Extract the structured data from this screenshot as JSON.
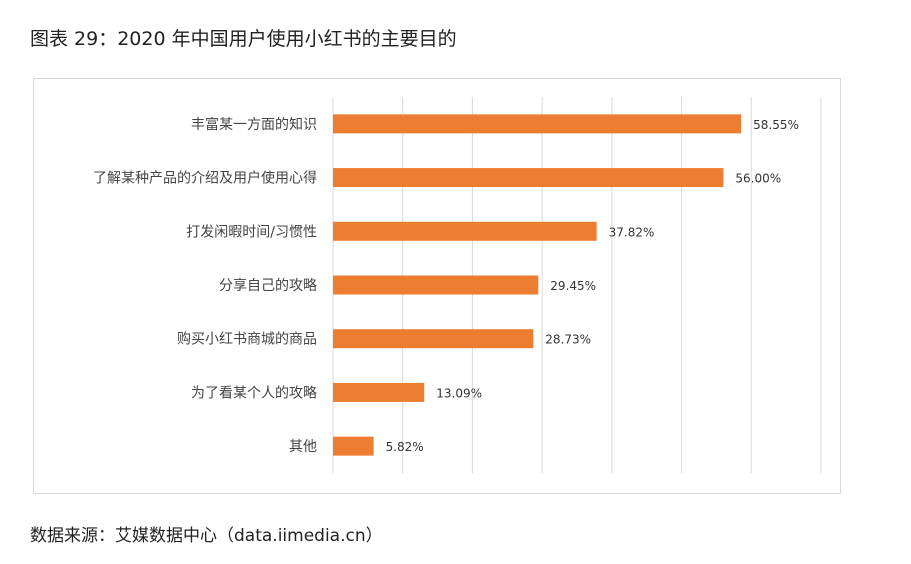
{
  "figure": {
    "title": "图表 29：2020 年中国用户使用小红书的主要目的",
    "source": "数据来源：艾媒数据中心（data.iimedia.cn）"
  },
  "chart_data": {
    "type": "bar",
    "orientation": "horizontal",
    "categories": [
      "丰富某一方面的知识",
      "了解某种产品的介绍及用户使用心得",
      "打发闲暇时间/习惯性",
      "分享自己的攻略",
      "购买小红书商城的商品",
      "为了看某个人的攻略",
      "其他"
    ],
    "values": [
      58.55,
      56.0,
      37.82,
      29.45,
      28.73,
      13.09,
      5.82
    ],
    "value_labels": [
      "58.55%",
      "56.00%",
      "37.82%",
      "29.45%",
      "28.73%",
      "13.09%",
      "5.82%"
    ],
    "xlim": [
      0,
      70
    ],
    "grid": true,
    "bar_color": "#ED7D31",
    "grid_color": "#d9d9d9"
  }
}
